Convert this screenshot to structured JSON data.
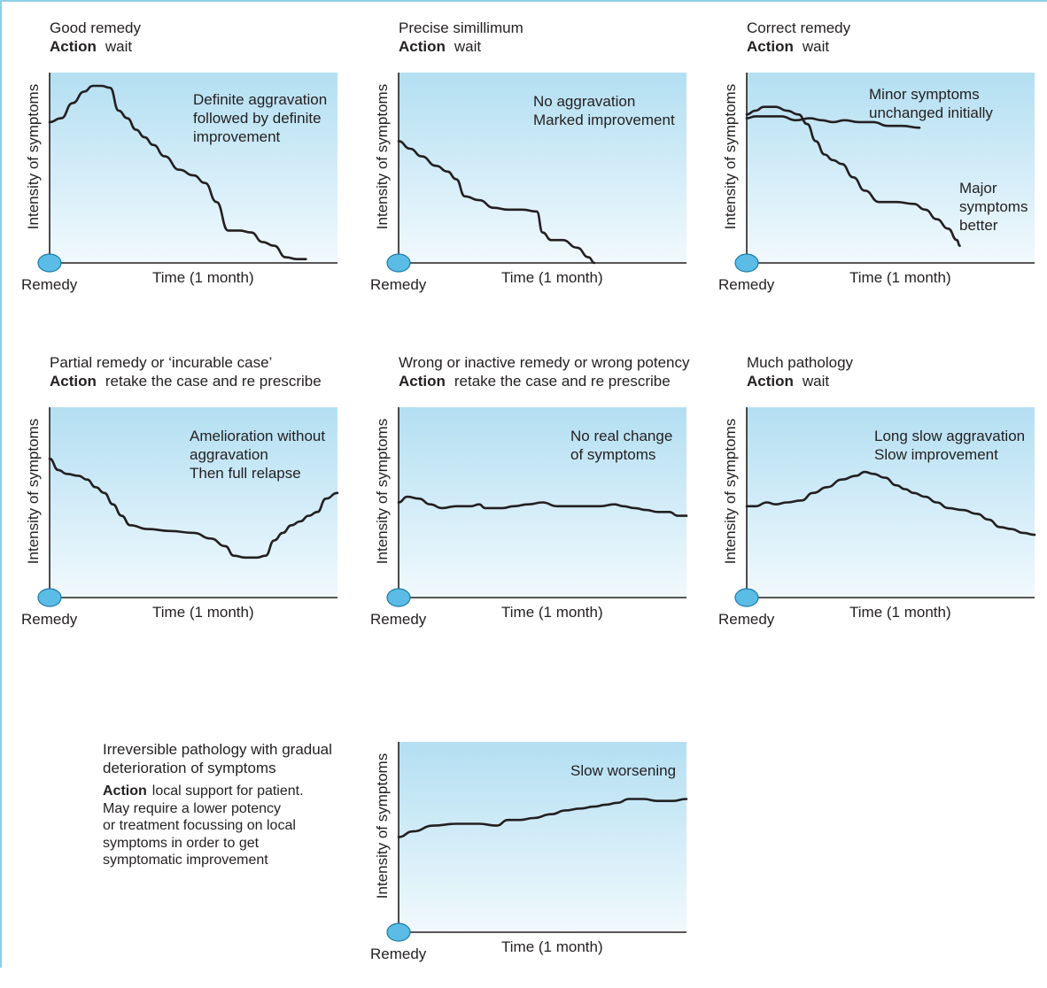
{
  "labels": {
    "y_axis": "Intensity of symptoms",
    "x_axis": "Time (1 month)",
    "origin": "Remedy",
    "action_word": "Action"
  },
  "panels": [
    {
      "id": "good-remedy",
      "title": "Good remedy",
      "action": "wait",
      "annotations": [
        {
          "lines": [
            "Definite aggravation",
            "followed by definite",
            "improvement"
          ]
        }
      ]
    },
    {
      "id": "precise-simillimum",
      "title": "Precise simillimum",
      "action": "wait",
      "annotations": [
        {
          "lines": [
            "No aggravation",
            "Marked improvement"
          ]
        }
      ]
    },
    {
      "id": "correct-remedy",
      "title": "Correct remedy",
      "action": "wait",
      "annotations": [
        {
          "lines": [
            "Minor symptoms",
            "unchanged initially"
          ]
        },
        {
          "lines": [
            "Major",
            "symptoms",
            "better"
          ]
        }
      ]
    },
    {
      "id": "partial-remedy",
      "title": "Partial remedy or ‘incurable case’",
      "action": "retake the case and re prescribe",
      "annotations": [
        {
          "lines": [
            "Amelioration without",
            "aggravation",
            "Then full relapse"
          ]
        }
      ]
    },
    {
      "id": "wrong-remedy",
      "title": "Wrong or inactive remedy or wrong potency",
      "action": "retake the case and re prescribe",
      "annotations": [
        {
          "lines": [
            "No real change",
            "of symptoms"
          ]
        }
      ]
    },
    {
      "id": "much-pathology",
      "title": "Much pathology",
      "action": "wait",
      "annotations": [
        {
          "lines": [
            "Long slow aggravation",
            "Slow improvement"
          ]
        }
      ]
    },
    {
      "id": "irreversible-pathology",
      "title": "",
      "action": "",
      "annotations": [
        {
          "lines": [
            "Slow worsening"
          ]
        }
      ]
    }
  ],
  "side_text": {
    "title_lines": [
      "Irreversible pathology with gradual",
      "deterioration of symptoms"
    ],
    "action_lines": [
      "local support for patient.",
      "May require a lower potency",
      "or treatment focussing on local",
      "symptoms in order to get",
      "symptomatic improvement"
    ]
  },
  "colors": {
    "plot_top": "#b3dff2",
    "plot_bottom": "#f1f9fd",
    "frame": "#8fcfe8",
    "curve": "#231f20",
    "remedy_dot": "#5bbde6"
  },
  "chart_data": [
    {
      "type": "line",
      "title": "Good remedy",
      "xlabel": "Time (1 month)",
      "ylabel": "Intensity of symptoms",
      "xlim": [
        0,
        100
      ],
      "ylim": [
        0,
        100
      ],
      "series": [
        {
          "x": [
            0,
            4,
            8,
            12,
            15,
            18,
            21,
            24,
            27,
            30,
            33,
            36,
            40,
            45,
            50,
            54,
            58,
            62,
            66,
            70,
            74,
            78,
            82,
            86,
            89
          ],
          "y": [
            74,
            76,
            84,
            90,
            93,
            93,
            92,
            80,
            76,
            70,
            66,
            62,
            56,
            49,
            46,
            42,
            32,
            17,
            17,
            16,
            11,
            9,
            3,
            2,
            2
          ]
        }
      ]
    },
    {
      "type": "line",
      "title": "Precise simillimum",
      "xlabel": "Time (1 month)",
      "ylabel": "Intensity of symptoms",
      "xlim": [
        0,
        100
      ],
      "ylim": [
        0,
        100
      ],
      "series": [
        {
          "x": [
            0,
            4,
            8,
            13,
            17,
            20,
            23,
            28,
            33,
            38,
            43,
            48,
            50,
            53,
            57,
            62,
            66,
            68
          ],
          "y": [
            64,
            60,
            56,
            51,
            48,
            44,
            35,
            33,
            29,
            28,
            28,
            27,
            16,
            12,
            12,
            8,
            3,
            0
          ]
        }
      ]
    },
    {
      "type": "line",
      "title": "Correct remedy",
      "xlabel": "Time (1 month)",
      "ylabel": "Intensity of symptoms",
      "xlim": [
        0,
        100
      ],
      "ylim": [
        0,
        100
      ],
      "series": [
        {
          "x": [
            0,
            3,
            7,
            12,
            17,
            22,
            26,
            30,
            34,
            39,
            44,
            49,
            54,
            60
          ],
          "y": [
            76,
            77,
            77,
            77,
            75,
            76,
            75,
            74,
            75,
            74,
            74,
            72,
            72,
            71
          ]
        },
        {
          "x": [
            0,
            3,
            6,
            10,
            14,
            18,
            21,
            24,
            27,
            30,
            33,
            37,
            41,
            46,
            52,
            58,
            62,
            66,
            70,
            73,
            74
          ],
          "y": [
            78,
            80,
            82,
            82,
            80,
            78,
            73,
            64,
            57,
            54,
            52,
            45,
            38,
            32,
            32,
            31,
            28,
            23,
            18,
            12,
            9
          ]
        }
      ]
    },
    {
      "type": "line",
      "title": "Partial remedy or ‘incurable case’",
      "xlabel": "Time (1 month)",
      "ylabel": "Intensity of symptoms",
      "xlim": [
        0,
        100
      ],
      "ylim": [
        0,
        100
      ],
      "series": [
        {
          "x": [
            0,
            3,
            6,
            10,
            13,
            16,
            19,
            22,
            25,
            28,
            34,
            42,
            50,
            56,
            61,
            64,
            68,
            72,
            75,
            78,
            81,
            84,
            87,
            90,
            93,
            96,
            100
          ],
          "y": [
            73,
            67,
            65,
            64,
            62,
            58,
            55,
            49,
            43,
            38,
            36,
            35,
            34,
            31,
            27,
            22,
            21,
            21,
            22,
            30,
            34,
            38,
            40,
            43,
            45,
            52,
            55
          ]
        }
      ]
    },
    {
      "type": "line",
      "title": "Wrong or inactive remedy or wrong potency",
      "xlabel": "Time (1 month)",
      "ylabel": "Intensity of symptoms",
      "xlim": [
        0,
        100
      ],
      "ylim": [
        0,
        100
      ],
      "series": [
        {
          "x": [
            0,
            3,
            7,
            11,
            15,
            20,
            25,
            28,
            30,
            36,
            40,
            45,
            50,
            55,
            60,
            65,
            70,
            75,
            78,
            82,
            86,
            90,
            94,
            97,
            100
          ],
          "y": [
            50,
            53,
            52,
            49,
            47,
            48,
            48,
            49,
            47,
            47,
            48,
            49,
            50,
            48,
            48,
            48,
            48,
            49,
            48,
            47,
            46,
            45,
            45,
            43,
            43
          ]
        }
      ]
    },
    {
      "type": "line",
      "title": "Much pathology",
      "xlabel": "Time (1 month)",
      "ylabel": "Intensity of symptoms",
      "xlim": [
        0,
        100
      ],
      "ylim": [
        0,
        100
      ],
      "series": [
        {
          "x": [
            0,
            3,
            7,
            10,
            14,
            19,
            23,
            28,
            33,
            38,
            41,
            44,
            48,
            52,
            55,
            58,
            62,
            66,
            70,
            75,
            80,
            84,
            88,
            92,
            96,
            100
          ],
          "y": [
            48,
            48,
            50,
            49,
            50,
            51,
            55,
            58,
            62,
            64,
            66,
            65,
            63,
            59,
            57,
            55,
            53,
            50,
            47,
            46,
            44,
            41,
            37,
            36,
            34,
            33
          ]
        }
      ]
    },
    {
      "type": "line",
      "title": "",
      "xlabel": "Time (1 month)",
      "ylabel": "Intensity of symptoms",
      "xlim": [
        0,
        100
      ],
      "ylim": [
        0,
        100
      ],
      "series": [
        {
          "x": [
            0,
            5,
            12,
            20,
            28,
            34,
            38,
            42,
            47,
            53,
            58,
            63,
            68,
            72,
            76,
            80,
            85,
            90,
            95,
            100
          ],
          "y": [
            50,
            53,
            56,
            57,
            57,
            56,
            59,
            59,
            60,
            62,
            64,
            65,
            66,
            67,
            68,
            70,
            70,
            69,
            69,
            70
          ]
        }
      ]
    }
  ]
}
